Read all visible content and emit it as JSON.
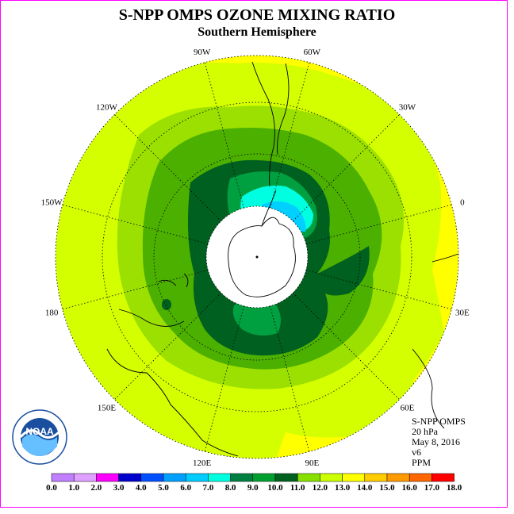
{
  "title": "S-NPP OMPS OZONE MIXING RATIO",
  "subtitle": "Southern Hemisphere",
  "longitude_labels": [
    "90W",
    "60W",
    "30W",
    "0",
    "30E",
    "60E",
    "90E",
    "120E",
    "150E",
    "180",
    "150W",
    "120W"
  ],
  "info": {
    "instrument": "S-NPP OMPS",
    "level": "20 hPa",
    "date": "May 8, 2016",
    "version": "v6",
    "units": "PPM"
  },
  "colorbar": {
    "labels": [
      "0.0",
      "1.0",
      "2.0",
      "3.0",
      "4.0",
      "5.0",
      "6.0",
      "7.0",
      "8.0",
      "9.0",
      "10.0",
      "11.0",
      "12.0",
      "13.0",
      "14.0",
      "15.0",
      "16.0",
      "17.0",
      "18.0"
    ],
    "colors": [
      "#c080ff",
      "#e0a0ff",
      "#ff00ff",
      "#0000cc",
      "#0050ff",
      "#00a0ff",
      "#00ccff",
      "#00ffe0",
      "#008040",
      "#00a030",
      "#006020",
      "#88e000",
      "#ccff00",
      "#ffff00",
      "#ffcc00",
      "#ff9900",
      "#ff6600",
      "#ff0000",
      "#996633"
    ]
  },
  "map": {
    "projection": "south polar stereographic",
    "center": "South Pole",
    "polar_night_region": "white (no data)",
    "colors": {
      "background": "#d4ff00",
      "yellow": "#ffff00",
      "light_green": "#9be000",
      "green": "#4cb000",
      "dark_green": "#006020",
      "mid_green": "#00a040",
      "cyan": "#00ffe0",
      "light_blue": "#00d0ff"
    }
  },
  "logo": {
    "text": "NOAA"
  }
}
